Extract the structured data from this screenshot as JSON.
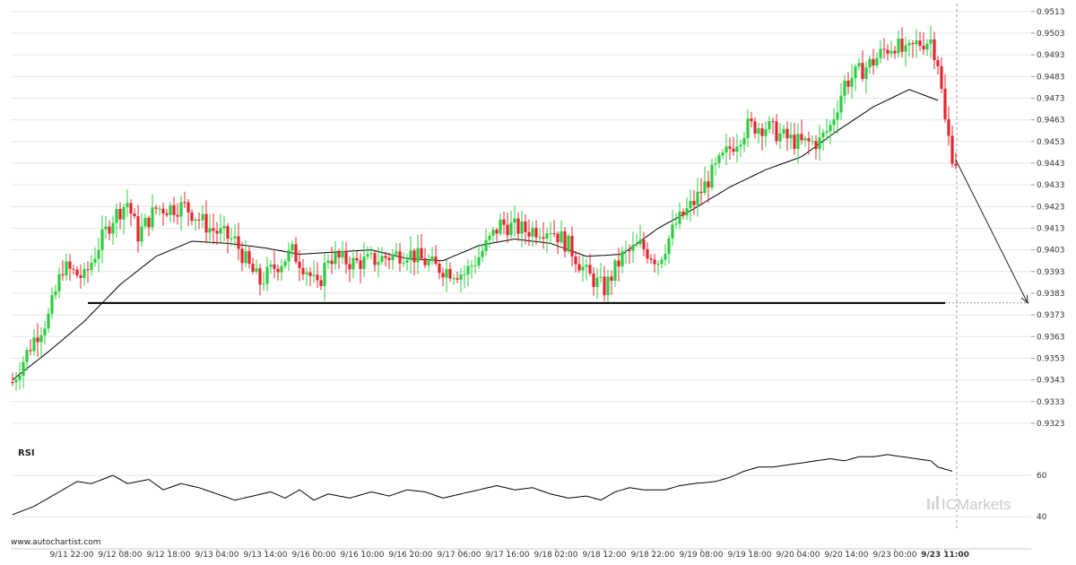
{
  "chart_data": {
    "type": "candlestick",
    "y_ticks": [
      "0.9513",
      "0.9503",
      "0.9493",
      "0.9483",
      "0.9473",
      "0.9463",
      "0.9453",
      "0.9443",
      "0.9433",
      "0.9423",
      "0.9413",
      "0.9403",
      "0.9393",
      "0.9383",
      "0.9373",
      "0.9363",
      "0.9353",
      "0.9343",
      "0.9333",
      "0.9323"
    ],
    "ylim": [
      0.9318,
      0.9515
    ],
    "x_labels": [
      "9/11 22:00",
      "9/12 08:00",
      "9/12 18:00",
      "9/13 04:00",
      "9/13 14:00",
      "9/16 00:00",
      "9/16 10:00",
      "9/16 20:00",
      "9/17 06:00",
      "9/17 16:00",
      "9/18 02:00",
      "9/18 12:00",
      "9/18 22:00",
      "9/19 08:00",
      "9/19 18:00",
      "9/20 04:00",
      "9/20 14:00",
      "9/23 00:00",
      "9/23 11:00"
    ],
    "support_level": 0.93785,
    "projection": {
      "from_value": 0.94445,
      "to_value": 0.93785
    },
    "ma_anchors": [
      [
        0,
        0.9343
      ],
      [
        10,
        0.9356
      ],
      [
        20,
        0.937
      ],
      [
        30,
        0.9387
      ],
      [
        40,
        0.94
      ],
      [
        50,
        0.9407
      ],
      [
        60,
        0.9406
      ],
      [
        70,
        0.9404
      ],
      [
        80,
        0.9401
      ],
      [
        90,
        0.9402
      ],
      [
        100,
        0.9403
      ],
      [
        110,
        0.9399
      ],
      [
        120,
        0.9398
      ],
      [
        130,
        0.9405
      ],
      [
        140,
        0.9408
      ],
      [
        150,
        0.9406
      ],
      [
        160,
        0.94
      ],
      [
        170,
        0.9401
      ],
      [
        180,
        0.9413
      ],
      [
        190,
        0.9422
      ],
      [
        200,
        0.9432
      ],
      [
        210,
        0.944
      ],
      [
        220,
        0.9446
      ],
      [
        230,
        0.9458
      ],
      [
        240,
        0.9469
      ],
      [
        250,
        0.9477
      ],
      [
        258,
        0.9472
      ]
    ],
    "price_anchors": [
      [
        0,
        0.9342
      ],
      [
        6,
        0.9362
      ],
      [
        10,
        0.9372
      ],
      [
        14,
        0.9395
      ],
      [
        20,
        0.939
      ],
      [
        24,
        0.9405
      ],
      [
        28,
        0.9418
      ],
      [
        32,
        0.9425
      ],
      [
        35,
        0.941
      ],
      [
        40,
        0.9422
      ],
      [
        48,
        0.9423
      ],
      [
        55,
        0.9413
      ],
      [
        62,
        0.9407
      ],
      [
        66,
        0.9395
      ],
      [
        69,
        0.9388
      ],
      [
        73,
        0.9395
      ],
      [
        78,
        0.9402
      ],
      [
        82,
        0.9394
      ],
      [
        85,
        0.9385
      ],
      [
        88,
        0.94
      ],
      [
        95,
        0.9397
      ],
      [
        100,
        0.9398
      ],
      [
        110,
        0.9402
      ],
      [
        118,
        0.9395
      ],
      [
        126,
        0.9392
      ],
      [
        130,
        0.94
      ],
      [
        136,
        0.9415
      ],
      [
        143,
        0.9412
      ],
      [
        150,
        0.9413
      ],
      [
        155,
        0.9405
      ],
      [
        160,
        0.9392
      ],
      [
        165,
        0.9385
      ],
      [
        170,
        0.94
      ],
      [
        175,
        0.9405
      ],
      [
        180,
        0.9398
      ],
      [
        185,
        0.9415
      ],
      [
        190,
        0.9425
      ],
      [
        195,
        0.9438
      ],
      [
        200,
        0.945
      ],
      [
        205,
        0.946
      ],
      [
        210,
        0.946
      ],
      [
        215,
        0.9455
      ],
      [
        220,
        0.9452
      ],
      [
        225,
        0.9453
      ],
      [
        228,
        0.946
      ],
      [
        232,
        0.948
      ],
      [
        236,
        0.9485
      ],
      [
        240,
        0.949
      ],
      [
        243,
        0.9495
      ],
      [
        246,
        0.9498
      ],
      [
        249,
        0.9493
      ],
      [
        252,
        0.9498
      ],
      [
        256,
        0.95
      ],
      [
        258,
        0.949
      ],
      [
        260,
        0.9462
      ],
      [
        262,
        0.9447
      ],
      [
        263,
        0.9444
      ]
    ],
    "rsi_label": "RSI",
    "rsi_ticks": [
      "60",
      "40"
    ],
    "rsi_ylim": [
      34,
      73
    ],
    "rsi_anchors": [
      [
        0,
        41
      ],
      [
        6,
        45
      ],
      [
        10,
        49
      ],
      [
        14,
        53
      ],
      [
        18,
        57
      ],
      [
        22,
        56
      ],
      [
        28,
        60
      ],
      [
        32,
        56
      ],
      [
        38,
        58
      ],
      [
        42,
        53
      ],
      [
        47,
        56
      ],
      [
        52,
        54
      ],
      [
        57,
        51
      ],
      [
        62,
        48
      ],
      [
        67,
        50
      ],
      [
        72,
        52
      ],
      [
        76,
        49
      ],
      [
        80,
        53
      ],
      [
        84,
        48
      ],
      [
        88,
        51
      ],
      [
        94,
        49
      ],
      [
        100,
        52
      ],
      [
        105,
        50
      ],
      [
        110,
        53
      ],
      [
        115,
        52
      ],
      [
        120,
        49
      ],
      [
        125,
        51
      ],
      [
        130,
        53
      ],
      [
        135,
        55
      ],
      [
        140,
        53
      ],
      [
        145,
        54
      ],
      [
        150,
        51
      ],
      [
        155,
        49
      ],
      [
        160,
        50
      ],
      [
        164,
        48
      ],
      [
        168,
        52
      ],
      [
        172,
        54
      ],
      [
        176,
        53
      ],
      [
        182,
        53
      ],
      [
        186,
        55
      ],
      [
        190,
        56
      ],
      [
        196,
        57
      ],
      [
        200,
        59
      ],
      [
        204,
        62
      ],
      [
        208,
        64
      ],
      [
        212,
        64
      ],
      [
        216,
        65
      ],
      [
        220,
        66
      ],
      [
        224,
        67
      ],
      [
        228,
        68
      ],
      [
        232,
        67
      ],
      [
        236,
        69
      ],
      [
        240,
        69
      ],
      [
        244,
        70
      ],
      [
        248,
        69
      ],
      [
        252,
        68
      ],
      [
        256,
        67
      ],
      [
        258,
        64
      ],
      [
        262,
        62
      ]
    ],
    "colors": {
      "up": "#2ecc40",
      "down": "#e5252e",
      "line": "#000000",
      "grid": "#e6e6e6"
    }
  },
  "footer": {
    "source": "www.autochartist.com"
  },
  "watermark": {
    "brand_ic": "IC",
    "brand_name": "Markets"
  }
}
